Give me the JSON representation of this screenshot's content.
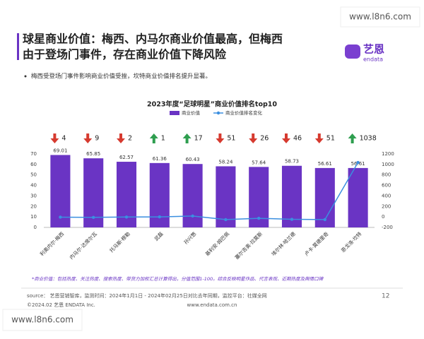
{
  "header": {
    "title_lines": [
      "球星商业价值：梅西、内马尔商业价值最高，但梅西",
      "由于登场门事件，存在商业价值下降风险"
    ],
    "logo": "艺恩",
    "logo_sub": "endata"
  },
  "bullet": "梅西受登场门事件影响商业价值受挫，坎特商业价值排名提升显著。",
  "chart_data": {
    "type": "combo",
    "title": "2023年度“足球明星”商业价值排名top10",
    "categories": [
      "利奥内尔·梅西",
      "内马尔·达席尔瓦",
      "托马斯·穆勒",
      "武磊",
      "孙兴慜",
      "基利安·姆巴佩",
      "塞尔吉奥·拉莫斯",
      "埃尔林·哈兰德",
      "卢卡·莫德里奇",
      "恩戈洛·坎特"
    ],
    "series": [
      {
        "name": "商业价值",
        "type": "bar",
        "color": "#6a34c4",
        "values": [
          69.01,
          65.85,
          62.57,
          61.36,
          60.43,
          58.24,
          57.64,
          58.73,
          56.61,
          56.61
        ]
      },
      {
        "name": "商业价值排名变化",
        "type": "line",
        "axis": "y2",
        "color": "#3b8fe0",
        "values": [
          -4,
          -9,
          -2,
          1,
          17,
          -51,
          -26,
          -46,
          -51,
          1038
        ],
        "value_labels": [
          "4",
          "9",
          "2",
          "1",
          "17",
          "51",
          "26",
          "46",
          "51",
          "1038"
        ]
      }
    ],
    "ylim": [
      0,
      70
    ],
    "yticks": [
      0,
      10,
      20,
      30,
      40,
      50,
      60,
      70
    ],
    "y2lim": [
      -200,
      1200
    ],
    "y2ticks": [
      -200,
      0,
      200,
      400,
      600,
      800,
      1000,
      1200
    ],
    "up_color": "#2e9e4f",
    "down_color": "#d63a2f"
  },
  "footnote": "*商业价值：包括热度、关注热度、搜索热度、带货力加权汇总计算得出，分值范围1-100。综合反映明星作品、代言表现、近期热度及舆情口碑",
  "footer": {
    "source": "source： 艺恩营销智库，监测时间：2024年1月1日 - 2024年02月25日对比去年同期，监控平台：社媒全网",
    "copyright": "©2024.02 艺恩 ENDATA Inc.",
    "website": "www.endata.com.cn",
    "page": "12"
  },
  "watermarks": [
    "www.l8n6.com",
    "www.l8n6.com"
  ]
}
